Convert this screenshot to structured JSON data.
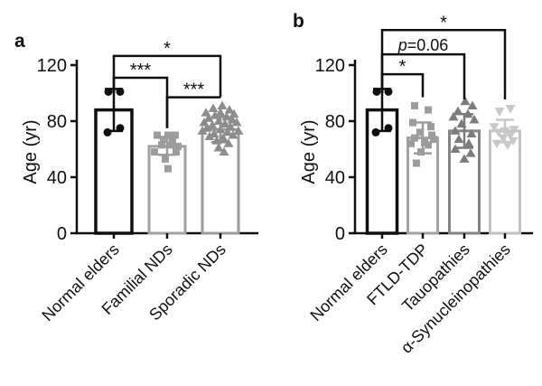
{
  "figure": {
    "background": "#ffffff",
    "axis_color": "#0f0f0f",
    "bracket_color": "#0f0f0f"
  },
  "chart_data": [
    {
      "panel_label": "a",
      "type": "bar",
      "title": "",
      "xlabel": "",
      "ylabel": "Age (yr)",
      "ylim": [
        0,
        120
      ],
      "yticks": [
        0,
        40,
        80,
        120
      ],
      "grid": false,
      "legend": "none",
      "categories": [
        "Normal elders",
        "Familial NDs",
        "Sporadic NDs"
      ],
      "bars": [
        {
          "category": "Normal elders",
          "mean": 88,
          "sd": 15,
          "bar_color": "#0f0f0f",
          "marker": "circle",
          "marker_color": "#0f0f0f",
          "points": [
            [
              101,
              -6
            ],
            [
              101,
              7
            ],
            [
              75,
              7
            ],
            [
              72,
              -7
            ]
          ]
        },
        {
          "category": "Familial NDs",
          "mean": 62,
          "sd": 6,
          "bar_color": "#a2a2a2",
          "marker": "square",
          "marker_color": "#9c9c9c",
          "points": [
            [
              70,
              -11
            ],
            [
              70,
              1
            ],
            [
              70,
              9
            ],
            [
              67,
              -4
            ],
            [
              66,
              6
            ],
            [
              63,
              -6
            ],
            [
              63,
              4
            ],
            [
              62,
              12
            ],
            [
              58,
              -14
            ],
            [
              58,
              10
            ],
            [
              53,
              -2
            ],
            [
              46,
              1
            ]
          ]
        },
        {
          "category": "Sporadic NDs",
          "mean": 74,
          "sd": 9,
          "bar_color": "#9c9c9c",
          "marker": "triangle-up",
          "marker_color": "#8d8d8d",
          "points": [
            [
              91,
              2
            ],
            [
              89,
              -8
            ],
            [
              88,
              10
            ],
            [
              86,
              -16
            ],
            [
              86,
              0
            ],
            [
              85,
              15
            ],
            [
              84,
              -6
            ],
            [
              83,
              7
            ],
            [
              82,
              -13
            ],
            [
              81,
              13
            ],
            [
              80,
              -2
            ],
            [
              79,
              -18
            ],
            [
              79,
              18
            ],
            [
              78,
              5
            ],
            [
              77,
              -9
            ],
            [
              76,
              11
            ],
            [
              75,
              -15
            ],
            [
              74,
              0
            ],
            [
              73,
              -20
            ],
            [
              73,
              20
            ],
            [
              72,
              8
            ],
            [
              71,
              -7
            ],
            [
              70,
              14
            ],
            [
              69,
              -12
            ],
            [
              68,
              3
            ],
            [
              66,
              -4
            ],
            [
              64,
              9
            ],
            [
              61,
              -2
            ],
            [
              58,
              4
            ]
          ]
        }
      ],
      "significance": [
        {
          "group1": 0,
          "group2": 1,
          "label": "***",
          "bar_y": 111,
          "drop1_to": 100,
          "drop2_to": 75
        },
        {
          "group1": 0,
          "group2": 2,
          "label": "*",
          "bar_y": 126.5,
          "drop1_to": 100,
          "drop2_to": 97
        },
        {
          "group1": 1,
          "group2": 2,
          "label": "***",
          "bar_y": 97,
          "drop1_to": 75,
          "drop2_to": 97
        }
      ]
    },
    {
      "panel_label": "b",
      "type": "bar",
      "title": "",
      "xlabel": "",
      "ylabel": "Age (yr)",
      "ylim": [
        0,
        120
      ],
      "yticks": [
        0,
        40,
        80,
        120
      ],
      "grid": false,
      "legend": "none",
      "categories": [
        "Normal elders",
        "FTLD-TDP",
        "Tauopathies",
        "α-Synucleinopathies"
      ],
      "bars": [
        {
          "category": "Normal elders",
          "mean": 88,
          "sd": 15,
          "bar_color": "#0f0f0f",
          "marker": "circle",
          "marker_color": "#0f0f0f",
          "points": [
            [
              101,
              -6
            ],
            [
              101,
              7
            ],
            [
              75,
              7
            ],
            [
              72,
              -7
            ]
          ]
        },
        {
          "category": "FTLD-TDP",
          "mean": 68,
          "sd": 11,
          "bar_color": "#a2a2a2",
          "marker": "square",
          "marker_color": "#9c9c9c",
          "points": [
            [
              91,
              -9
            ],
            [
              88,
              6
            ],
            [
              79,
              -11
            ],
            [
              76,
              9
            ],
            [
              72,
              -3
            ],
            [
              70,
              10
            ],
            [
              68,
              -9
            ],
            [
              67,
              12
            ],
            [
              65,
              2
            ],
            [
              64,
              -13
            ],
            [
              63,
              6
            ],
            [
              58,
              -2
            ],
            [
              50,
              -7
            ]
          ]
        },
        {
          "category": "Tauopathies",
          "mean": 73,
          "sd": 12,
          "bar_color": "#848484",
          "marker": "triangle-up",
          "marker_color": "#7c7c7c",
          "points": [
            [
              94,
              1
            ],
            [
              91,
              9
            ],
            [
              87,
              -7
            ],
            [
              85,
              4
            ],
            [
              83,
              -12
            ],
            [
              81,
              11
            ],
            [
              78,
              -3
            ],
            [
              73,
              -10
            ],
            [
              71,
              8
            ],
            [
              67,
              -6
            ],
            [
              64,
              5
            ],
            [
              60,
              -10
            ],
            [
              57,
              7
            ],
            [
              53,
              0
            ]
          ]
        },
        {
          "category": "α-Synucleinopathies",
          "mean": 73,
          "sd": 8,
          "bar_color": "#c2c2c2",
          "marker": "triangle-down",
          "marker_color": "#c8c8c8",
          "points": [
            [
              89,
              6
            ],
            [
              87,
              -6
            ],
            [
              76,
              -12
            ],
            [
              74,
              10
            ],
            [
              73,
              0
            ],
            [
              72,
              -7
            ],
            [
              70,
              6
            ],
            [
              68,
              -2
            ],
            [
              66,
              9
            ],
            [
              64,
              -9
            ],
            [
              63,
              3
            ]
          ]
        }
      ],
      "significance": [
        {
          "group1": 0,
          "group2": 1,
          "label": "*",
          "bar_y": 113.5,
          "drop1_to": 100,
          "drop2_to": 97
        },
        {
          "group1": 0,
          "group2": 2,
          "label": "p=0.06",
          "bar_y": 127.7,
          "drop1_to": 100,
          "drop2_to": 95.5
        },
        {
          "group1": 0,
          "group2": 3,
          "label": "*",
          "bar_y": 145,
          "drop1_to": 100,
          "drop2_to": 95.5
        }
      ]
    }
  ]
}
